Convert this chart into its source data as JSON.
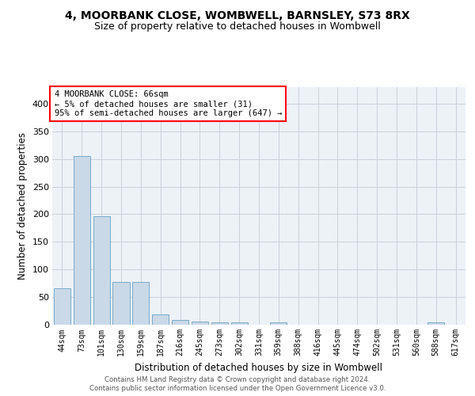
{
  "title1": "4, MOORBANK CLOSE, WOMBWELL, BARNSLEY, S73 8RX",
  "title2": "Size of property relative to detached houses in Wombwell",
  "xlabel": "Distribution of detached houses by size in Wombwell",
  "ylabel": "Number of detached properties",
  "categories": [
    "44sqm",
    "73sqm",
    "101sqm",
    "130sqm",
    "159sqm",
    "187sqm",
    "216sqm",
    "245sqm",
    "273sqm",
    "302sqm",
    "331sqm",
    "359sqm",
    "388sqm",
    "416sqm",
    "445sqm",
    "474sqm",
    "502sqm",
    "531sqm",
    "560sqm",
    "588sqm",
    "617sqm"
  ],
  "values": [
    66,
    305,
    197,
    77,
    77,
    19,
    9,
    6,
    4,
    4,
    0,
    4,
    0,
    0,
    0,
    0,
    0,
    0,
    0,
    4,
    0
  ],
  "bar_color": "#c9d9e8",
  "bar_edge_color": "#7aaac8",
  "annotation_line1": "4 MOORBANK CLOSE: 66sqm",
  "annotation_line2": "← 5% of detached houses are smaller (31)",
  "annotation_line3": "95% of semi-detached houses are larger (647) →",
  "annotation_color": "red",
  "bg_color": "#edf2f7",
  "grid_color": "#c8d0d8",
  "footer1": "Contains HM Land Registry data © Crown copyright and database right 2024.",
  "footer2": "Contains public sector information licensed under the Open Government Licence v3.0.",
  "ylim": [
    0,
    430
  ],
  "yticks": [
    0,
    50,
    100,
    150,
    200,
    250,
    300,
    350,
    400
  ]
}
